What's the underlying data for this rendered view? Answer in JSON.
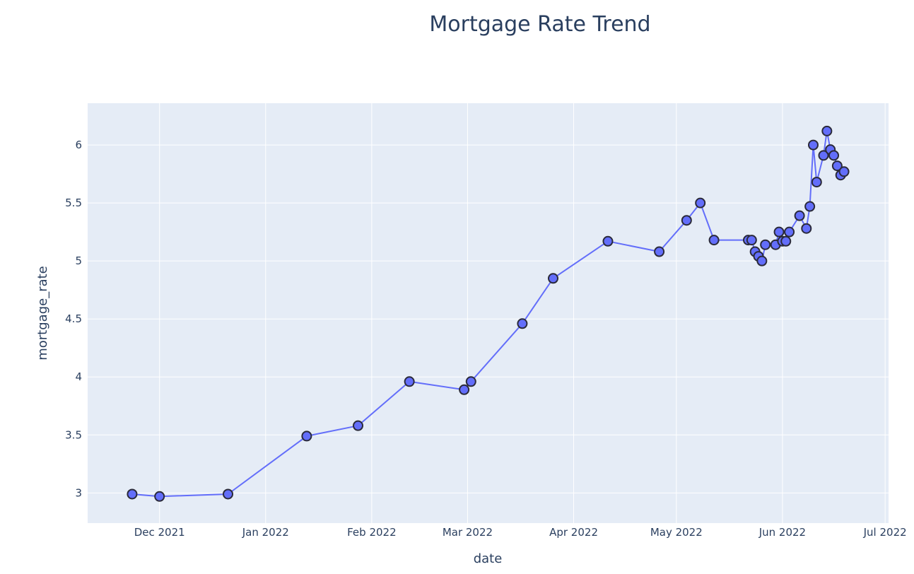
{
  "chart_data": {
    "type": "line",
    "title": "Mortgage Rate Trend",
    "xlabel": "date",
    "ylabel": "mortgage_rate",
    "x_tick_labels": [
      {
        "date": "2021-12-01",
        "label": "Dec 2021"
      },
      {
        "date": "2022-01-01",
        "label": "Jan 2022"
      },
      {
        "date": "2022-02-01",
        "label": "Feb 2022"
      },
      {
        "date": "2022-03-01",
        "label": "Mar 2022"
      },
      {
        "date": "2022-04-01",
        "label": "Apr 2022"
      },
      {
        "date": "2022-05-01",
        "label": "May 2022"
      },
      {
        "date": "2022-06-01",
        "label": "Jun 2022"
      },
      {
        "date": "2022-07-01",
        "label": "Jul 2022"
      }
    ],
    "y_ticks": [
      3,
      3.5,
      4,
      4.5,
      5,
      5.5,
      6
    ],
    "xlim": [
      "2021-11-10",
      "2022-07-02"
    ],
    "ylim": [
      2.74,
      6.36
    ],
    "grid": true,
    "series": [
      {
        "color": "#636efa",
        "marker_outline": "#2a2a3a",
        "points": [
          {
            "x": "2021-11-23",
            "y": 2.99
          },
          {
            "x": "2021-12-01",
            "y": 2.97
          },
          {
            "x": "2021-12-21",
            "y": 2.99
          },
          {
            "x": "2022-01-13",
            "y": 3.49
          },
          {
            "x": "2022-01-28",
            "y": 3.58
          },
          {
            "x": "2022-02-12",
            "y": 3.96
          },
          {
            "x": "2022-02-28",
            "y": 3.89
          },
          {
            "x": "2022-03-02",
            "y": 3.96
          },
          {
            "x": "2022-03-17",
            "y": 4.46
          },
          {
            "x": "2022-03-26",
            "y": 4.85
          },
          {
            "x": "2022-04-11",
            "y": 5.17
          },
          {
            "x": "2022-04-26",
            "y": 5.08
          },
          {
            "x": "2022-05-04",
            "y": 5.35
          },
          {
            "x": "2022-05-08",
            "y": 5.5
          },
          {
            "x": "2022-05-12",
            "y": 5.18
          },
          {
            "x": "2022-05-22",
            "y": 5.18
          },
          {
            "x": "2022-05-23",
            "y": 5.18
          },
          {
            "x": "2022-05-24",
            "y": 5.08
          },
          {
            "x": "2022-05-25",
            "y": 5.04
          },
          {
            "x": "2022-05-26",
            "y": 5.0
          },
          {
            "x": "2022-05-27",
            "y": 5.14
          },
          {
            "x": "2022-05-30",
            "y": 5.14
          },
          {
            "x": "2022-05-31",
            "y": 5.25
          },
          {
            "x": "2022-06-01",
            "y": 5.17
          },
          {
            "x": "2022-06-02",
            "y": 5.17
          },
          {
            "x": "2022-06-03",
            "y": 5.25
          },
          {
            "x": "2022-06-06",
            "y": 5.39
          },
          {
            "x": "2022-06-08",
            "y": 5.28
          },
          {
            "x": "2022-06-09",
            "y": 5.47
          },
          {
            "x": "2022-06-10",
            "y": 6.0
          },
          {
            "x": "2022-06-11",
            "y": 5.68
          },
          {
            "x": "2022-06-13",
            "y": 5.91
          },
          {
            "x": "2022-06-14",
            "y": 6.12
          },
          {
            "x": "2022-06-15",
            "y": 5.96
          },
          {
            "x": "2022-06-16",
            "y": 5.91
          },
          {
            "x": "2022-06-17",
            "y": 5.82
          },
          {
            "x": "2022-06-18",
            "y": 5.74
          },
          {
            "x": "2022-06-19",
            "y": 5.77
          }
        ]
      }
    ]
  },
  "colors": {
    "plot_background": "#e5ecf6",
    "grid": "#ffffff",
    "text": "#2a3f5f"
  }
}
